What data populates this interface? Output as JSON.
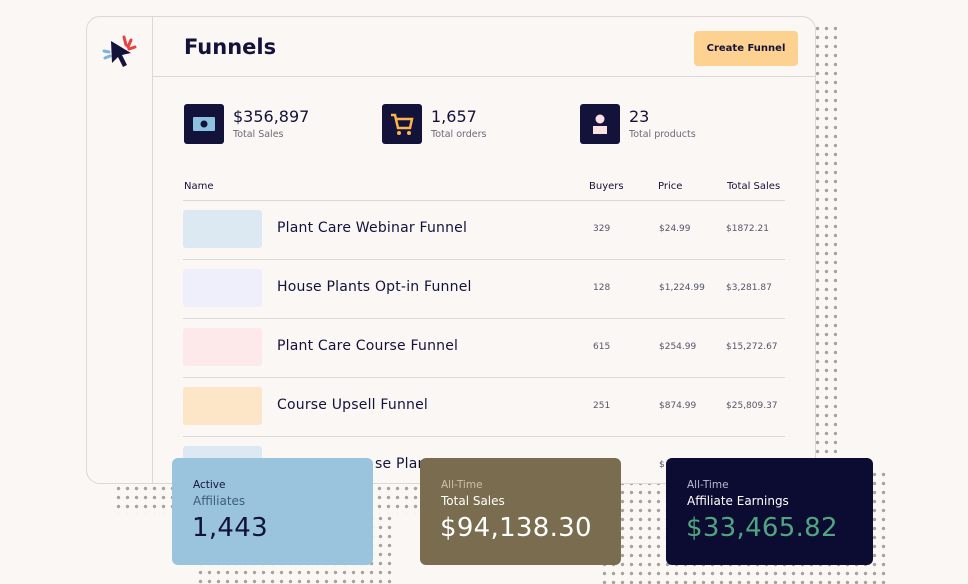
{
  "header": {
    "title": "Funnels",
    "button": "Create Funnel"
  },
  "stats": [
    {
      "value": "$356,897",
      "label": "Total Sales"
    },
    {
      "value": "1,657",
      "label": "Total orders"
    },
    {
      "value": "23",
      "label": "Total products"
    }
  ],
  "table": {
    "columns": [
      "Name",
      "Buyers",
      "Price",
      "Total Sales"
    ],
    "rows": [
      [
        "Plant Care Webinar Funnel",
        "329",
        "$24.99",
        "$1872.21"
      ],
      [
        "House Plants Opt-in Funnel",
        "128",
        "$1,224.99",
        "$3,281.87"
      ],
      [
        "Plant Care Course Funnel",
        "615",
        "$254.99",
        "$15,272.67"
      ],
      [
        "Course Upsell Funnel",
        "251",
        "$874.99",
        "$25,809.37"
      ],
      [
        "se Plan",
        "$"
      ]
    ]
  },
  "cards": [
    {
      "line1": "Active",
      "line2": "Affiliates",
      "value": "1,443"
    },
    {
      "line1": "All-Time",
      "line2": "Total Sales",
      "value": "$94,138.30"
    },
    {
      "line1": "All-Time",
      "line2": "Affiliate Earnings",
      "value": "$33,465.82"
    }
  ]
}
